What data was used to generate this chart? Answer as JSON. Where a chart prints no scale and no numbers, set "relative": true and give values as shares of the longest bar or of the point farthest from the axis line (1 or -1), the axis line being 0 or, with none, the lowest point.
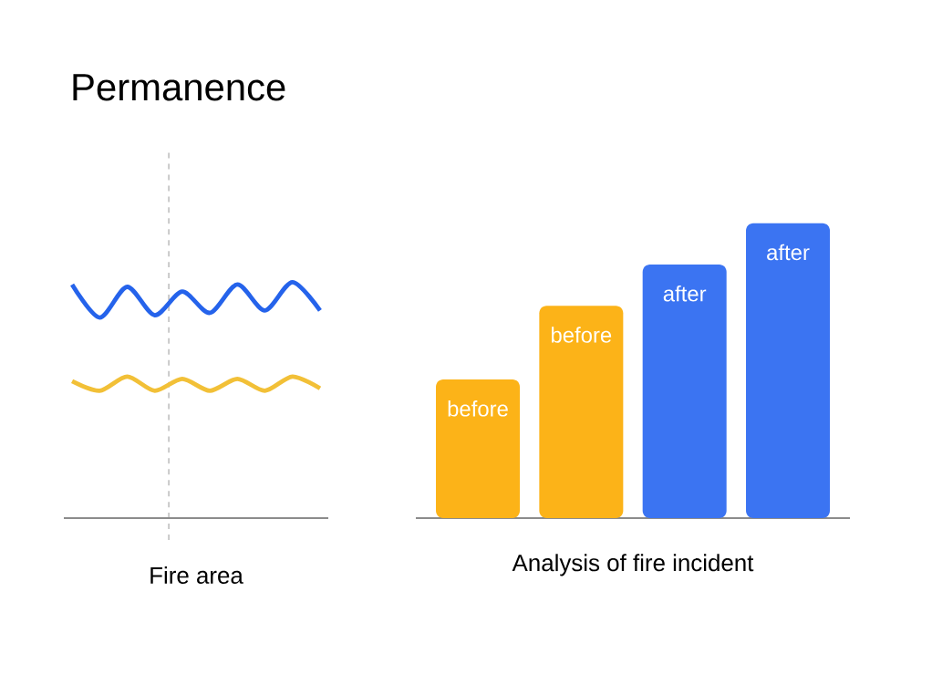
{
  "chart_data": [
    {
      "type": "line",
      "title": "Permanence",
      "xlabel": "Fire area",
      "relative": true,
      "grid": true,
      "categories": [
        null,
        null,
        null,
        null,
        null,
        null,
        null,
        null,
        null,
        null
      ],
      "series": [
        {
          "color": "#2563eb",
          "values": [
            0.99,
            0.85,
            0.98,
            0.86,
            0.96,
            0.87,
            0.99,
            0.88,
            1.0,
            0.88
          ]
        },
        {
          "color": "#f2c037",
          "values": [
            0.58,
            0.54,
            0.6,
            0.54,
            0.59,
            0.54,
            0.59,
            0.54,
            0.6,
            0.55
          ]
        }
      ]
    },
    {
      "type": "bar",
      "xlabel": "Analysis of fire incident",
      "relative": true,
      "categories": [
        "before",
        "before",
        "after",
        "after"
      ],
      "values": [
        0.47,
        0.72,
        0.86,
        1.0
      ],
      "colors": [
        "#fcb318",
        "#fcb318",
        "#3b74f2",
        "#3b74f2"
      ]
    }
  ]
}
